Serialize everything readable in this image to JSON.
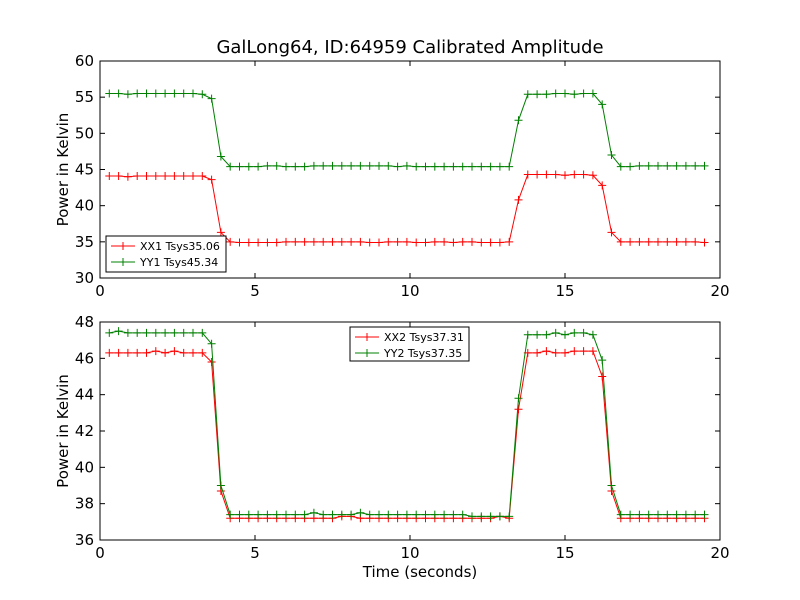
{
  "title": "GalLong64, ID:64959 Calibrated Amplitude",
  "chart_data": [
    {
      "type": "line",
      "xlabel": "",
      "ylabel": "Power in Kelvin",
      "xlim": [
        0,
        20
      ],
      "ylim": [
        30,
        60
      ],
      "xticks": [
        0,
        5,
        10,
        15,
        20
      ],
      "yticks": [
        30,
        35,
        40,
        45,
        50,
        55,
        60
      ],
      "grid": false,
      "legend_position": "lower-left",
      "x": [
        0.3,
        0.6,
        0.9,
        1.2,
        1.5,
        1.8,
        2.1,
        2.4,
        2.7,
        3.0,
        3.3,
        3.6,
        3.9,
        4.2,
        4.5,
        4.8,
        5.1,
        5.4,
        5.7,
        6.0,
        6.3,
        6.6,
        6.9,
        7.2,
        7.5,
        7.8,
        8.1,
        8.4,
        8.7,
        9.0,
        9.3,
        9.6,
        9.9,
        10.2,
        10.5,
        10.8,
        11.1,
        11.4,
        11.7,
        12.0,
        12.3,
        12.6,
        12.9,
        13.2,
        13.5,
        13.8,
        14.1,
        14.4,
        14.7,
        15.0,
        15.3,
        15.6,
        15.9,
        16.2,
        16.5,
        16.8,
        17.1,
        17.4,
        17.7,
        18.0,
        18.3,
        18.6,
        18.9,
        19.2,
        19.5
      ],
      "series": [
        {
          "name": "XX1 Tsys35.06",
          "color": "#ff0000",
          "values": [
            44.1,
            44.1,
            44.0,
            44.1,
            44.1,
            44.1,
            44.1,
            44.1,
            44.1,
            44.1,
            44.1,
            43.6,
            36.3,
            35.0,
            34.9,
            34.9,
            34.9,
            34.9,
            34.9,
            35.0,
            35.0,
            35.0,
            35.0,
            35.0,
            35.0,
            35.0,
            35.0,
            35.0,
            34.9,
            34.9,
            35.0,
            35.0,
            35.0,
            34.9,
            34.9,
            35.0,
            35.0,
            34.9,
            35.0,
            35.0,
            34.9,
            34.9,
            34.9,
            35.0,
            40.8,
            44.3,
            44.3,
            44.3,
            44.3,
            44.2,
            44.3,
            44.3,
            44.2,
            42.8,
            36.3,
            35.0,
            35.0,
            35.0,
            35.0,
            35.0,
            35.0,
            35.0,
            35.0,
            35.0,
            34.9
          ]
        },
        {
          "name": "YY1 Tsys45.34",
          "color": "#008000",
          "values": [
            55.5,
            55.5,
            55.4,
            55.5,
            55.5,
            55.5,
            55.5,
            55.5,
            55.5,
            55.5,
            55.4,
            54.8,
            46.8,
            45.4,
            45.4,
            45.4,
            45.4,
            45.5,
            45.5,
            45.4,
            45.4,
            45.4,
            45.5,
            45.5,
            45.5,
            45.5,
            45.5,
            45.5,
            45.5,
            45.5,
            45.5,
            45.4,
            45.5,
            45.4,
            45.4,
            45.4,
            45.4,
            45.4,
            45.4,
            45.4,
            45.4,
            45.4,
            45.4,
            45.4,
            51.8,
            55.4,
            55.4,
            55.4,
            55.5,
            55.5,
            55.4,
            55.5,
            55.5,
            54.0,
            47.0,
            45.4,
            45.4,
            45.5,
            45.5,
            45.5,
            45.5,
            45.5,
            45.5,
            45.5,
            45.5
          ]
        }
      ]
    },
    {
      "type": "line",
      "xlabel": "Time (seconds)",
      "ylabel": "Power in Kelvin",
      "xlim": [
        0,
        20
      ],
      "ylim": [
        36,
        48
      ],
      "xticks": [
        0,
        5,
        10,
        15,
        20
      ],
      "yticks": [
        36,
        38,
        40,
        42,
        44,
        46,
        48
      ],
      "grid": false,
      "legend_position": "top-center",
      "x": [
        0.3,
        0.6,
        0.9,
        1.2,
        1.5,
        1.8,
        2.1,
        2.4,
        2.7,
        3.0,
        3.3,
        3.6,
        3.9,
        4.2,
        4.5,
        4.8,
        5.1,
        5.4,
        5.7,
        6.0,
        6.3,
        6.6,
        6.9,
        7.2,
        7.5,
        7.8,
        8.1,
        8.4,
        8.7,
        9.0,
        9.3,
        9.6,
        9.9,
        10.2,
        10.5,
        10.8,
        11.1,
        11.4,
        11.7,
        12.0,
        12.3,
        12.6,
        12.9,
        13.2,
        13.5,
        13.8,
        14.1,
        14.4,
        14.7,
        15.0,
        15.3,
        15.6,
        15.9,
        16.2,
        16.5,
        16.8,
        17.1,
        17.4,
        17.7,
        18.0,
        18.3,
        18.6,
        18.9,
        19.2,
        19.5
      ],
      "series": [
        {
          "name": "XX2 Tsys37.31",
          "color": "#ff0000",
          "values": [
            46.3,
            46.3,
            46.3,
            46.3,
            46.3,
            46.4,
            46.3,
            46.4,
            46.3,
            46.3,
            46.3,
            45.8,
            38.7,
            37.2,
            37.2,
            37.2,
            37.2,
            37.2,
            37.2,
            37.2,
            37.2,
            37.2,
            37.2,
            37.2,
            37.2,
            37.3,
            37.3,
            37.2,
            37.2,
            37.2,
            37.2,
            37.2,
            37.2,
            37.2,
            37.2,
            37.2,
            37.2,
            37.2,
            37.2,
            37.2,
            37.2,
            37.2,
            37.3,
            37.2,
            43.2,
            46.3,
            46.3,
            46.4,
            46.3,
            46.3,
            46.4,
            46.4,
            46.4,
            45.0,
            38.7,
            37.2,
            37.2,
            37.2,
            37.2,
            37.2,
            37.2,
            37.2,
            37.2,
            37.2,
            37.2
          ]
        },
        {
          "name": "YY2 Tsys37.35",
          "color": "#008000",
          "values": [
            47.4,
            47.5,
            47.4,
            47.4,
            47.4,
            47.4,
            47.4,
            47.4,
            47.4,
            47.4,
            47.4,
            46.8,
            39.0,
            37.4,
            37.4,
            37.4,
            37.4,
            37.4,
            37.4,
            37.4,
            37.4,
            37.4,
            37.5,
            37.4,
            37.4,
            37.4,
            37.4,
            37.5,
            37.4,
            37.4,
            37.4,
            37.4,
            37.4,
            37.4,
            37.4,
            37.4,
            37.4,
            37.4,
            37.4,
            37.3,
            37.3,
            37.3,
            37.3,
            37.3,
            43.8,
            47.3,
            47.3,
            47.3,
            47.4,
            47.3,
            47.4,
            47.4,
            47.3,
            45.9,
            39.0,
            37.4,
            37.4,
            37.4,
            37.4,
            37.4,
            37.4,
            37.4,
            37.4,
            37.4,
            37.4
          ]
        }
      ]
    }
  ]
}
